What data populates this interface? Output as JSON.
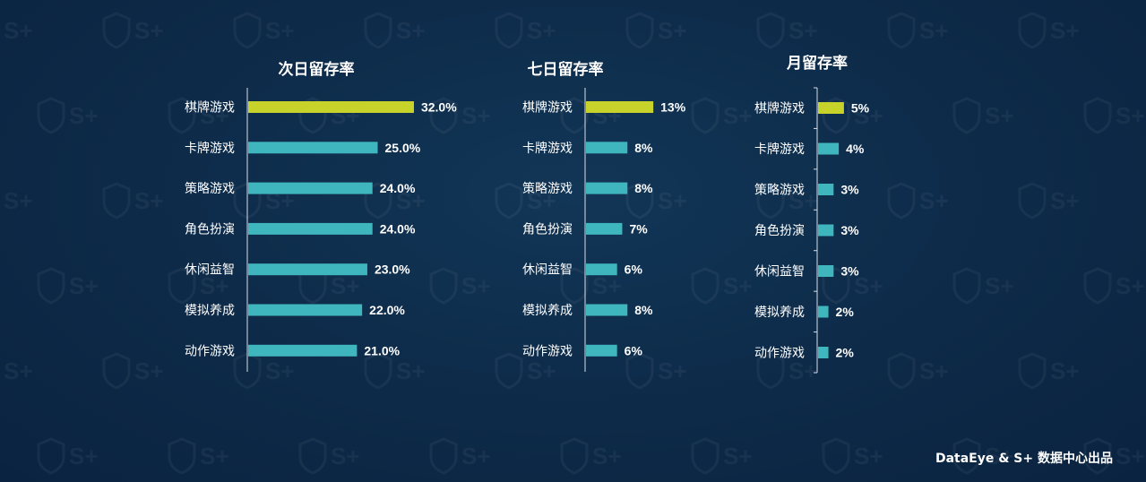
{
  "colors": {
    "highlight": "#c7d22a",
    "bar": "#3fb5bd",
    "axis": "#d8dee6",
    "text": "#ffffff"
  },
  "watermark": {
    "icon": "shield-s-plus-icon",
    "text": "S+"
  },
  "credit": "DataEye & S+ 数据中心出品",
  "chart_data": [
    {
      "type": "bar",
      "orientation": "horizontal",
      "title": "次日留存率",
      "categories": [
        "棋牌游戏",
        "卡牌游戏",
        "策略游戏",
        "角色扮演",
        "休闲益智",
        "模拟养成",
        "动作游戏"
      ],
      "values": [
        32.0,
        25.0,
        24.0,
        24.0,
        23.0,
        22.0,
        21.0
      ],
      "labels": [
        "32.0%",
        "25.0%",
        "24.0%",
        "24.0%",
        "23.0%",
        "22.0%",
        "21.0%"
      ],
      "xlim": [
        0,
        100
      ],
      "highlight_index": 0,
      "grid": false
    },
    {
      "type": "bar",
      "orientation": "horizontal",
      "title": "七日留存率",
      "categories": [
        "棋牌游戏",
        "卡牌游戏",
        "策略游戏",
        "角色扮演",
        "休闲益智",
        "模拟养成",
        "动作游戏"
      ],
      "values": [
        13,
        8,
        8,
        7,
        6,
        8,
        6
      ],
      "labels": [
        "13%",
        "8%",
        "8%",
        "7%",
        "6%",
        "8%",
        "6%"
      ],
      "xlim": [
        0,
        100
      ],
      "highlight_index": 0,
      "grid": false
    },
    {
      "type": "bar",
      "orientation": "horizontal",
      "title": "月留存率",
      "categories": [
        "棋牌游戏",
        "卡牌游戏",
        "策略游戏",
        "角色扮演",
        "休闲益智",
        "模拟养成",
        "动作游戏"
      ],
      "values": [
        5,
        4,
        3,
        3,
        3,
        2,
        2
      ],
      "labels": [
        "5%",
        "4%",
        "3%",
        "3%",
        "3%",
        "2%",
        "2%"
      ],
      "xlim": [
        0,
        100
      ],
      "highlight_index": 0,
      "grid": false
    }
  ]
}
